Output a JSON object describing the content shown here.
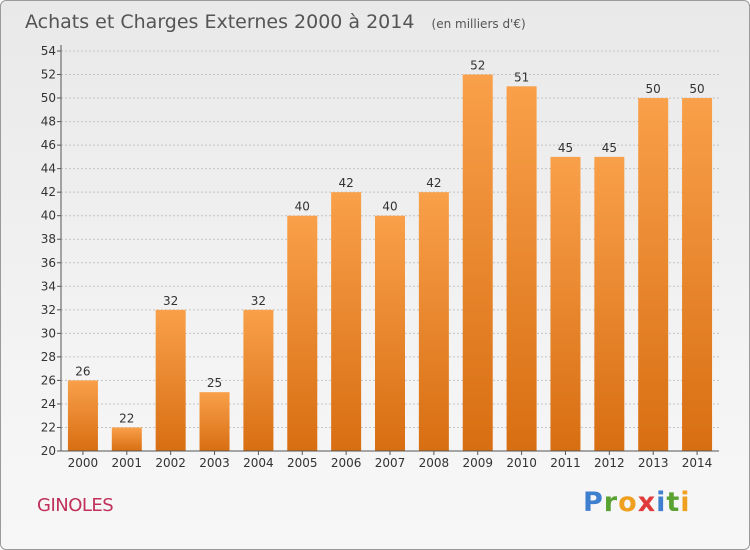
{
  "chart_data": {
    "type": "bar",
    "title": "Achats et Charges Externes 2000 à 2014",
    "subtitle": "(en milliers d'€)",
    "categories": [
      "2000",
      "2001",
      "2002",
      "2003",
      "2004",
      "2005",
      "2006",
      "2007",
      "2008",
      "2009",
      "2010",
      "2011",
      "2012",
      "2013",
      "2014"
    ],
    "values": [
      26,
      22,
      32,
      25,
      32,
      40,
      42,
      40,
      42,
      52,
      51,
      45,
      45,
      50,
      50
    ],
    "ylim": [
      20,
      54
    ],
    "yticks": [
      20,
      22,
      24,
      26,
      28,
      30,
      32,
      34,
      36,
      38,
      40,
      42,
      44,
      46,
      48,
      50,
      52,
      54
    ],
    "grid": true,
    "bar_color": "#f08a28"
  },
  "footer": {
    "commune": "GINOLES",
    "logo": {
      "letters": [
        {
          "ch": "P",
          "color": "#3f7fd0"
        },
        {
          "ch": "r",
          "color": "#5aa332"
        },
        {
          "ch": "o",
          "color": "#f0a020"
        },
        {
          "ch": "x",
          "color": "#e03a3a"
        },
        {
          "ch": "i",
          "color": "#3f7fd0"
        },
        {
          "ch": "t",
          "color": "#5aa332"
        },
        {
          "ch": "i",
          "color": "#f0a020"
        }
      ]
    }
  }
}
